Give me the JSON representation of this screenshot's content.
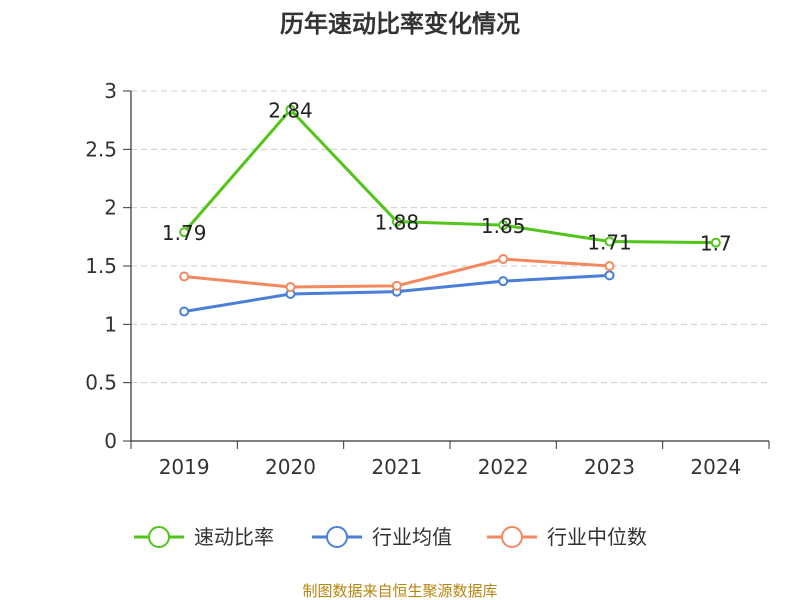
{
  "chart_data": {
    "type": "line",
    "title": "历年速动比率变化情况",
    "categories": [
      "2019",
      "2020",
      "2021",
      "2022",
      "2023",
      "2024"
    ],
    "ylim": [
      0,
      3
    ],
    "yticks": [
      "0",
      "0.5",
      "1",
      "1.5",
      "2",
      "2.5",
      "3"
    ],
    "grid": true,
    "legend_position": "bottom",
    "series": [
      {
        "name": "速动比率",
        "color": "#52c41a",
        "values": [
          1.79,
          2.84,
          1.88,
          1.85,
          1.71,
          1.7
        ],
        "labels": [
          "1.79",
          "2.84",
          "1.88",
          "1.85",
          "1.71",
          "1.7"
        ]
      },
      {
        "name": "行业均值",
        "color": "#4a7fd9",
        "values": [
          1.11,
          1.26,
          1.28,
          1.37,
          1.42,
          null
        ]
      },
      {
        "name": "行业中位数",
        "color": "#f4895f",
        "values": [
          1.41,
          1.32,
          1.33,
          1.56,
          1.5,
          null
        ]
      }
    ]
  },
  "source_note": "制图数据来自恒生聚源数据库"
}
